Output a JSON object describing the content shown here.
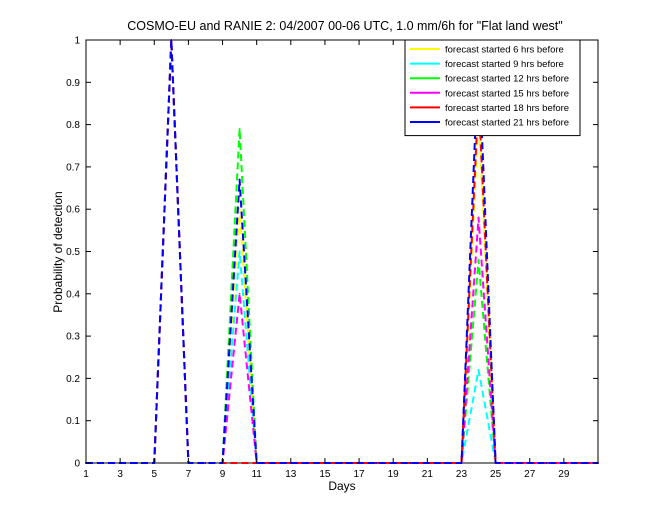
{
  "figure": {
    "title": "COSMO-EU and RANIE 2: 04/2007 00-06 UTC, 1.0 mm/6h for \"Flat land west\""
  },
  "chart_data": {
    "type": "line",
    "title": "COSMO-EU and RANIE 2: 04/2007 00-06 UTC, 1.0 mm/6h for \"Flat land west\"",
    "xlabel": "Days",
    "ylabel": "Probability of detection",
    "xlim": [
      1,
      31
    ],
    "ylim": [
      0,
      1
    ],
    "xticks": [
      1,
      3,
      5,
      7,
      9,
      11,
      13,
      15,
      17,
      19,
      21,
      23,
      25,
      27,
      29
    ],
    "yticks": [
      0,
      0.1,
      0.2,
      0.3,
      0.4,
      0.5,
      0.6,
      0.7,
      0.8,
      0.9,
      1
    ],
    "ytick_labels": [
      "0",
      "0.1",
      "0.2",
      "0.3",
      "0.4",
      "0.5",
      "0.6",
      "0.7",
      "0.8",
      "0.9",
      "1"
    ],
    "grid": false,
    "legend_position": "top-right",
    "series": [
      {
        "name": "forecast started 6 hrs before",
        "color": "#ffff00",
        "x": [
          1,
          2,
          3,
          4,
          5,
          6,
          7,
          8,
          9,
          10,
          11,
          12,
          13,
          14,
          15,
          16,
          17,
          18,
          19,
          20,
          21,
          22,
          23,
          24,
          25,
          26,
          27,
          28,
          29,
          30,
          31
        ],
        "y": [
          0,
          0,
          0,
          0,
          0,
          1,
          0,
          0,
          0,
          0.6,
          0,
          0,
          0,
          0,
          0,
          0,
          0,
          0,
          0,
          0,
          0,
          0,
          0,
          0.82,
          0,
          0,
          0,
          0,
          0,
          0,
          0
        ]
      },
      {
        "name": "forecast started 9 hrs before",
        "color": "#00ffff",
        "x": [
          1,
          2,
          3,
          4,
          5,
          6,
          7,
          8,
          9,
          10,
          11,
          12,
          13,
          14,
          15,
          16,
          17,
          18,
          19,
          20,
          21,
          22,
          23,
          24,
          25,
          26,
          27,
          28,
          29,
          30,
          31
        ],
        "y": [
          0,
          0,
          0,
          0,
          0,
          1,
          0,
          0,
          0,
          0.5,
          0,
          0,
          0,
          0,
          0,
          0,
          0,
          0,
          0,
          0,
          0,
          0,
          0,
          0.22,
          0,
          0,
          0,
          0,
          0,
          0,
          0
        ]
      },
      {
        "name": "forecast started 12 hrs before",
        "color": "#00ff00",
        "x": [
          1,
          2,
          3,
          4,
          5,
          6,
          7,
          8,
          9,
          10,
          11,
          12,
          13,
          14,
          15,
          16,
          17,
          18,
          19,
          20,
          21,
          22,
          23,
          24,
          25,
          26,
          27,
          28,
          29,
          30,
          31
        ],
        "y": [
          0,
          0,
          0,
          0,
          0,
          1,
          0,
          0,
          0,
          0.79,
          0,
          0,
          0,
          0,
          0,
          0,
          0,
          0,
          0,
          0,
          0,
          0,
          0,
          0.48,
          0,
          0,
          0,
          0,
          0,
          0,
          0
        ]
      },
      {
        "name": "forecast started 15 hrs before",
        "color": "#ff00ff",
        "x": [
          1,
          2,
          3,
          4,
          5,
          6,
          7,
          8,
          9,
          10,
          11,
          12,
          13,
          14,
          15,
          16,
          17,
          18,
          19,
          20,
          21,
          22,
          23,
          24,
          25,
          26,
          27,
          28,
          29,
          30,
          31
        ],
        "y": [
          0,
          0,
          0,
          0,
          0,
          1,
          0,
          0,
          0,
          0.4,
          0,
          0,
          0,
          0,
          0,
          0,
          0,
          0,
          0,
          0,
          0,
          0,
          0,
          0.58,
          0,
          0,
          0,
          0,
          0,
          0,
          0
        ]
      },
      {
        "name": "forecast started 18 hrs before",
        "color": "#ff0000",
        "x": [
          1,
          2,
          3,
          4,
          5,
          6,
          7,
          8,
          9,
          10,
          11,
          12,
          13,
          14,
          15,
          16,
          17,
          18,
          19,
          20,
          21,
          22,
          23,
          24,
          25,
          26,
          27,
          28,
          29,
          30,
          31
        ],
        "y": [
          0,
          0,
          0,
          0,
          0,
          1,
          0,
          0,
          0,
          0,
          0,
          0,
          0,
          0,
          0,
          0,
          0,
          0,
          0,
          0,
          0,
          0,
          0,
          0.87,
          0,
          0,
          0,
          0,
          0,
          0,
          0
        ]
      },
      {
        "name": "forecast started 21 hrs before",
        "color": "#0000ff",
        "x": [
          1,
          2,
          3,
          4,
          5,
          6,
          7,
          8,
          9,
          10,
          11,
          12,
          13,
          14,
          15,
          16,
          17,
          18,
          19,
          20,
          21,
          22,
          23,
          24,
          25,
          26,
          27,
          28,
          29,
          30,
          31
        ],
        "y": [
          0,
          0,
          0,
          0,
          0,
          1,
          0,
          0,
          0,
          0.67,
          0,
          0,
          0,
          0,
          0,
          0,
          0,
          0,
          0,
          0,
          0,
          0,
          0,
          0.97,
          0,
          0,
          0,
          0,
          0,
          0,
          0
        ]
      }
    ]
  }
}
